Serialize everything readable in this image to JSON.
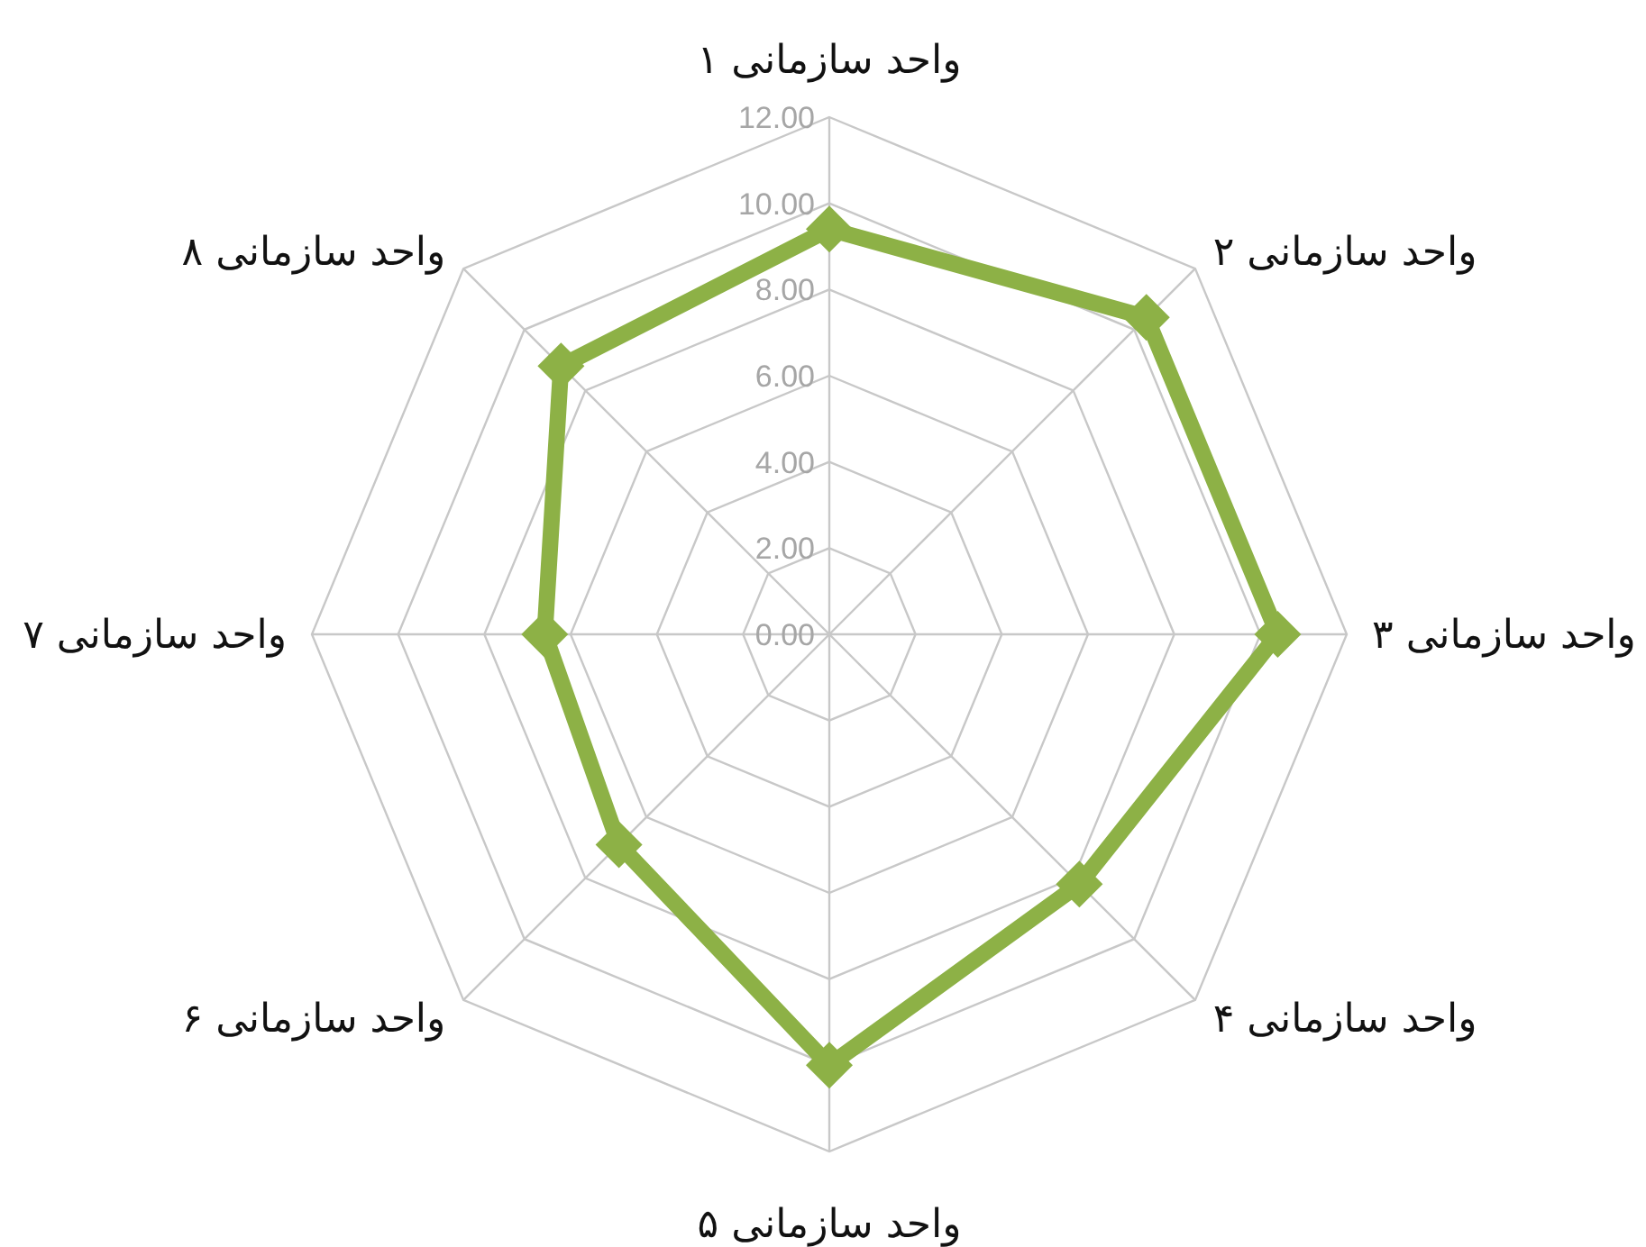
{
  "chart_data": {
    "type": "radar",
    "categories": [
      "واحد سازمانی ۱",
      "واحد سازمانی ۲",
      "واحد سازمانی ۳",
      "واحد سازمانی ۴",
      "واحد سازمانی ۵",
      "واحد سازمانی ۶",
      "واحد سازمانی ۷",
      "واحد سازمانی ۸"
    ],
    "series": [
      {
        "color": "#8db146",
        "values": [
          9.4,
          10.4,
          10.4,
          8.2,
          10.0,
          6.9,
          6.6,
          8.8
        ]
      }
    ],
    "ylim": [
      0,
      12
    ],
    "yticks": [
      {
        "value": 0,
        "label": "0.00"
      },
      {
        "value": 2,
        "label": "2.00"
      },
      {
        "value": 4,
        "label": "4.00"
      },
      {
        "value": 6,
        "label": "6.00"
      },
      {
        "value": 8,
        "label": "8.00"
      },
      {
        "value": 10,
        "label": "10.00"
      },
      {
        "value": 12,
        "label": "12.00"
      }
    ],
    "marker": "diamond",
    "line_style": "solid",
    "grid": true,
    "legend": false
  }
}
